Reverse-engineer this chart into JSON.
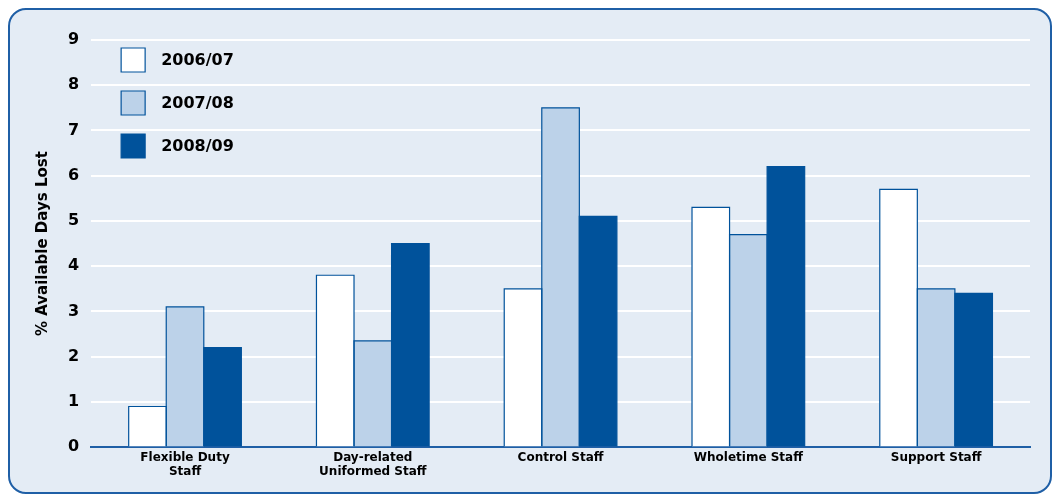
{
  "chart_data": {
    "type": "bar",
    "ylabel": "% Available Days Lost",
    "categories": [
      "Flexible Duty Staff",
      "Day-related Uniformed Staff",
      "Control Staff",
      "Wholetime Staff",
      "Support Staff"
    ],
    "series": [
      {
        "name": "2006/07",
        "color": "#ffffff",
        "values": [
          0.9,
          3.8,
          3.5,
          5.3,
          5.7
        ]
      },
      {
        "name": "2007/08",
        "color": "#bcd2e9",
        "values": [
          3.1,
          2.35,
          7.5,
          4.7,
          3.5
        ]
      },
      {
        "name": "2008/09",
        "color": "#00529b",
        "values": [
          2.2,
          4.5,
          5.1,
          6.2,
          3.4
        ]
      }
    ],
    "ylim": [
      0,
      9
    ],
    "yticks": [
      0,
      1,
      2,
      3,
      4,
      5,
      6,
      7,
      8,
      9
    ],
    "grid": "y",
    "legend": "top left"
  }
}
